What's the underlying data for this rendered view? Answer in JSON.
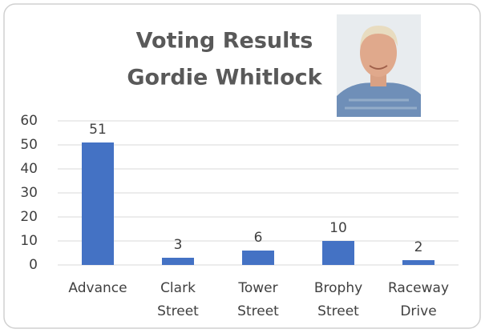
{
  "chart_data": {
    "type": "bar",
    "title": "Voting Results",
    "subtitle": "Gordie Whitlock",
    "categories": [
      "Advance",
      "Clark Street",
      "Tower Street",
      "Brophy Street",
      "Raceway Drive"
    ],
    "values": [
      51,
      3,
      6,
      10,
      2
    ],
    "color": "#4472c4",
    "ylim": [
      0,
      60
    ],
    "yticks": [
      0,
      10,
      20,
      30,
      40,
      50,
      60
    ],
    "grid": true
  }
}
